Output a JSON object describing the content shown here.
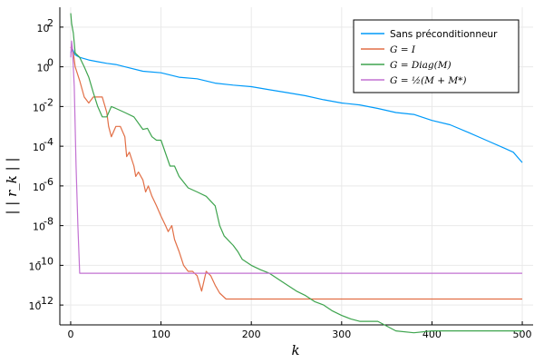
{
  "chart_data": {
    "type": "line",
    "title": "",
    "xlabel": "k",
    "ylabel": "| | r_k | |",
    "xlim": [
      -12,
      512
    ],
    "ylim_log10": [
      -13,
      3
    ],
    "yscale": "log10",
    "grid": true,
    "legend_position": "top-right",
    "x_ticks": [
      0,
      100,
      200,
      300,
      400,
      500
    ],
    "y_ticks": [
      {
        "exp": 2,
        "label": "2"
      },
      {
        "exp": 0,
        "label": "0"
      },
      {
        "exp": -2,
        "label": "-2"
      },
      {
        "exp": -4,
        "label": "-4"
      },
      {
        "exp": -6,
        "label": "-6"
      },
      {
        "exp": -8,
        "label": "-8"
      },
      {
        "exp": -10,
        "label": "-10"
      },
      {
        "exp": -12,
        "label": "-12"
      }
    ],
    "series": [
      {
        "name": "Sans préconditionneur",
        "color": "#009af9",
        "points": [
          [
            0,
            5
          ],
          [
            2,
            8
          ],
          [
            5,
            4
          ],
          [
            10,
            3
          ],
          [
            20,
            2.2
          ],
          [
            30,
            1.8
          ],
          [
            40,
            1.5
          ],
          [
            50,
            1.3
          ],
          [
            60,
            1
          ],
          [
            80,
            0.6
          ],
          [
            100,
            0.5
          ],
          [
            120,
            0.3
          ],
          [
            140,
            0.25
          ],
          [
            160,
            0.15
          ],
          [
            180,
            0.12
          ],
          [
            200,
            0.1
          ],
          [
            220,
            0.07
          ],
          [
            240,
            0.05
          ],
          [
            260,
            0.035
          ],
          [
            280,
            0.022
          ],
          [
            300,
            0.015
          ],
          [
            320,
            0.012
          ],
          [
            340,
            0.008
          ],
          [
            360,
            0.005
          ],
          [
            380,
            0.004
          ],
          [
            400,
            0.002
          ],
          [
            420,
            0.0012
          ],
          [
            440,
            0.0005
          ],
          [
            460,
            0.0002
          ],
          [
            480,
            8e-05
          ],
          [
            490,
            5e-05
          ],
          [
            500,
            1.5e-05
          ]
        ]
      },
      {
        "name": "G = I",
        "color": "#e26f46",
        "points": [
          [
            0,
            10
          ],
          [
            3,
            5
          ],
          [
            5,
            1
          ],
          [
            10,
            0.2
          ],
          [
            15,
            0.03
          ],
          [
            20,
            0.015
          ],
          [
            25,
            0.03
          ],
          [
            35,
            0.03
          ],
          [
            40,
            0.005
          ],
          [
            42,
            0.001
          ],
          [
            45,
            0.0003
          ],
          [
            50,
            0.001
          ],
          [
            55,
            0.001
          ],
          [
            60,
            0.0003
          ],
          [
            62,
            3e-05
          ],
          [
            65,
            5e-05
          ],
          [
            70,
            1e-05
          ],
          [
            72,
            3e-06
          ],
          [
            75,
            5e-06
          ],
          [
            80,
            2e-06
          ],
          [
            83,
            5e-07
          ],
          [
            86,
            1e-06
          ],
          [
            90,
            3e-07
          ],
          [
            95,
            1e-07
          ],
          [
            100,
            3e-08
          ],
          [
            105,
            1e-08
          ],
          [
            108,
            5e-09
          ],
          [
            112,
            1e-08
          ],
          [
            115,
            2e-09
          ],
          [
            120,
            5e-10
          ],
          [
            125,
            1e-10
          ],
          [
            130,
            5e-11
          ],
          [
            135,
            5e-11
          ],
          [
            140,
            3e-11
          ],
          [
            145,
            5e-12
          ],
          [
            148,
            2e-11
          ],
          [
            150,
            5e-11
          ],
          [
            155,
            3e-11
          ],
          [
            160,
            1e-11
          ],
          [
            165,
            4e-12
          ],
          [
            172,
            2e-12
          ],
          [
            200,
            2e-12
          ],
          [
            300,
            2e-12
          ],
          [
            400,
            2e-12
          ],
          [
            500,
            2e-12
          ]
        ]
      },
      {
        "name": "G = Diag(M)",
        "color": "#3ea44e",
        "points": [
          [
            0,
            500
          ],
          [
            1,
            150
          ],
          [
            3,
            50
          ],
          [
            5,
            5
          ],
          [
            10,
            3
          ],
          [
            15,
            1
          ],
          [
            20,
            0.3
          ],
          [
            25,
            0.05
          ],
          [
            30,
            0.01
          ],
          [
            35,
            0.003
          ],
          [
            40,
            0.003
          ],
          [
            45,
            0.01
          ],
          [
            50,
            0.008
          ],
          [
            60,
            0.005
          ],
          [
            70,
            0.003
          ],
          [
            80,
            0.0007
          ],
          [
            85,
            0.0008
          ],
          [
            90,
            0.0003
          ],
          [
            95,
            0.0002
          ],
          [
            100,
            0.0002
          ],
          [
            110,
            1e-05
          ],
          [
            115,
            1e-05
          ],
          [
            120,
            3e-06
          ],
          [
            130,
            8e-07
          ],
          [
            140,
            5e-07
          ],
          [
            150,
            3e-07
          ],
          [
            160,
            1e-07
          ],
          [
            165,
            1e-08
          ],
          [
            170,
            3e-09
          ],
          [
            180,
            1e-09
          ],
          [
            185,
            5e-10
          ],
          [
            190,
            2e-10
          ],
          [
            200,
            1e-10
          ],
          [
            210,
            6e-11
          ],
          [
            220,
            4e-11
          ],
          [
            230,
            2e-11
          ],
          [
            240,
            1e-11
          ],
          [
            250,
            5e-12
          ],
          [
            260,
            3e-12
          ],
          [
            270,
            1.5e-12
          ],
          [
            280,
            1e-12
          ],
          [
            290,
            5e-13
          ],
          [
            300,
            3e-13
          ],
          [
            310,
            2e-13
          ],
          [
            320,
            1.5e-13
          ],
          [
            340,
            1.5e-13
          ],
          [
            360,
            5e-14
          ],
          [
            380,
            4e-14
          ],
          [
            400,
            5e-14
          ],
          [
            420,
            5e-14
          ],
          [
            440,
            5e-14
          ],
          [
            460,
            5e-14
          ],
          [
            480,
            5e-14
          ],
          [
            500,
            5e-14
          ]
        ]
      },
      {
        "name": "G = ½(M + M*)",
        "color": "#c271d2",
        "points": [
          [
            0,
            3
          ],
          [
            1,
            20
          ],
          [
            2,
            8
          ],
          [
            4,
            0.1
          ],
          [
            6,
            1e-05
          ],
          [
            8,
            1e-08
          ],
          [
            10,
            4e-11
          ],
          [
            12,
            4e-11
          ],
          [
            100,
            4e-11
          ],
          [
            200,
            4e-11
          ],
          [
            300,
            4e-11
          ],
          [
            400,
            4e-11
          ],
          [
            500,
            4e-11
          ]
        ]
      }
    ]
  }
}
